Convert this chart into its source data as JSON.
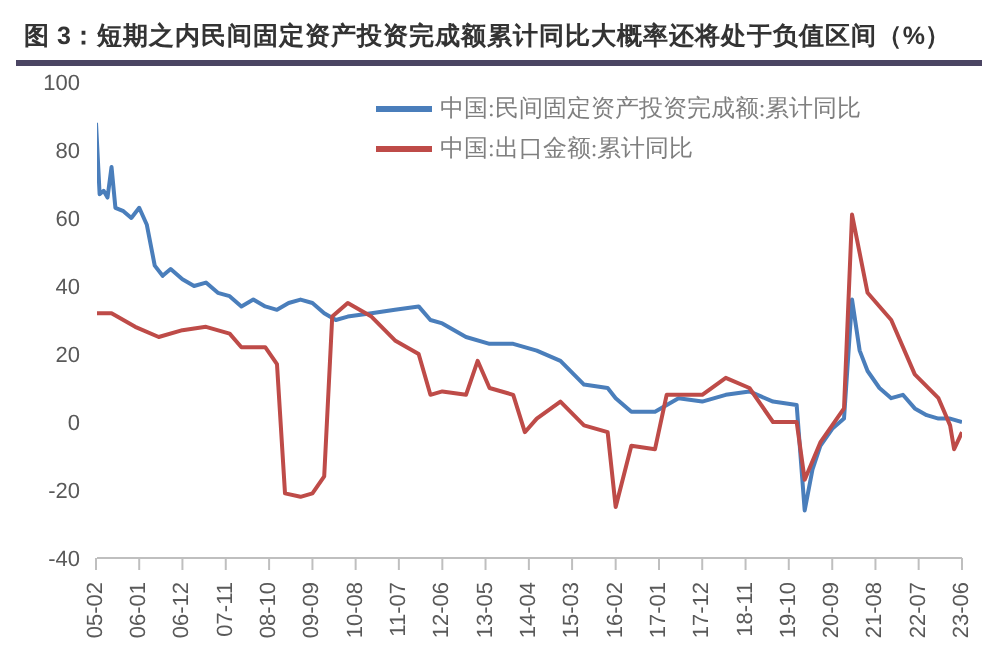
{
  "chart_data": {
    "type": "line",
    "title": "图 3：短期之内民间固定资产投资完成额累计同比大概率还将处于负值区间（%）",
    "legend": "top right",
    "marker": "none",
    "line_style": "solid",
    "ylim": [
      -40,
      100
    ],
    "yticks": [
      -40,
      -20,
      0,
      20,
      40,
      60,
      80,
      100
    ],
    "xlim": [
      "2005-02",
      "2023-06"
    ],
    "xticks": [
      {
        "value": "2005-02",
        "label": "05-02"
      },
      {
        "value": "2006-01",
        "label": "06-01"
      },
      {
        "value": "2006-12",
        "label": "06-12"
      },
      {
        "value": "2007-11",
        "label": "07-11"
      },
      {
        "value": "2008-10",
        "label": "08-10"
      },
      {
        "value": "2009-09",
        "label": "09-09"
      },
      {
        "value": "2010-08",
        "label": "10-08"
      },
      {
        "value": "2011-07",
        "label": "11-07"
      },
      {
        "value": "2012-06",
        "label": "12-06"
      },
      {
        "value": "2013-05",
        "label": "13-05"
      },
      {
        "value": "2014-04",
        "label": "14-04"
      },
      {
        "value": "2015-03",
        "label": "15-03"
      },
      {
        "value": "2016-02",
        "label": "16-02"
      },
      {
        "value": "2017-01",
        "label": "17-01"
      },
      {
        "value": "2017-12",
        "label": "17-12"
      },
      {
        "value": "2018-11",
        "label": "18-11"
      },
      {
        "value": "2019-10",
        "label": "19-10"
      },
      {
        "value": "2020-09",
        "label": "20-09"
      },
      {
        "value": "2021-08",
        "label": "21-08"
      },
      {
        "value": "2022-07",
        "label": "22-07"
      },
      {
        "value": "2023-06",
        "label": "23-06"
      }
    ],
    "series": [
      {
        "name": "中国:民间固定资产投资完成额:累计同比",
        "color": "#4a7ebb",
        "x": [
          "2005-02",
          "2005-03",
          "2005-04",
          "2005-05",
          "2005-06",
          "2005-07",
          "2005-09",
          "2005-11",
          "2006-01",
          "2006-03",
          "2006-05",
          "2006-07",
          "2006-09",
          "2006-12",
          "2007-03",
          "2007-06",
          "2007-09",
          "2007-12",
          "2008-03",
          "2008-06",
          "2008-09",
          "2008-12",
          "2009-03",
          "2009-06",
          "2009-09",
          "2009-12",
          "2010-03",
          "2010-06",
          "2010-12",
          "2011-06",
          "2011-12",
          "2012-03",
          "2012-06",
          "2012-12",
          "2013-06",
          "2013-12",
          "2014-06",
          "2014-12",
          "2015-06",
          "2015-12",
          "2016-02",
          "2016-06",
          "2016-12",
          "2017-06",
          "2017-12",
          "2018-06",
          "2018-12",
          "2019-06",
          "2019-12",
          "2020-02",
          "2020-04",
          "2020-06",
          "2020-09",
          "2020-12",
          "2021-02",
          "2021-04",
          "2021-06",
          "2021-09",
          "2021-12",
          "2022-03",
          "2022-06",
          "2022-09",
          "2022-12",
          "2023-03",
          "2023-06"
        ],
        "values": [
          88,
          67,
          68,
          66,
          75,
          63,
          62,
          60,
          63,
          58,
          46,
          43,
          45,
          42,
          40,
          41,
          38,
          37,
          34,
          36,
          34,
          33,
          35,
          36,
          35,
          32,
          30,
          31,
          32,
          33,
          34,
          30,
          29,
          25,
          23,
          23,
          21,
          18,
          11,
          10,
          7,
          3,
          3,
          7,
          6,
          8,
          9,
          6,
          5,
          -26,
          -14,
          -7,
          -2,
          1,
          36,
          21,
          15,
          10,
          7,
          8,
          4,
          2,
          1,
          1,
          0
        ]
      },
      {
        "name": "中国:出口金额:累计同比",
        "color": "#be4b48",
        "x": [
          "2005-02",
          "2005-06",
          "2005-12",
          "2006-06",
          "2006-12",
          "2007-06",
          "2007-12",
          "2008-03",
          "2008-06",
          "2008-09",
          "2008-12",
          "2009-02",
          "2009-06",
          "2009-09",
          "2009-12",
          "2010-02",
          "2010-06",
          "2010-12",
          "2011-06",
          "2011-12",
          "2012-03",
          "2012-06",
          "2012-12",
          "2013-03",
          "2013-06",
          "2013-12",
          "2014-03",
          "2014-06",
          "2014-12",
          "2015-06",
          "2015-12",
          "2016-02",
          "2016-06",
          "2016-12",
          "2017-03",
          "2017-12",
          "2018-06",
          "2018-12",
          "2019-06",
          "2019-12",
          "2020-02",
          "2020-06",
          "2020-12",
          "2021-02",
          "2021-06",
          "2021-12",
          "2022-06",
          "2022-12",
          "2023-03",
          "2023-04",
          "2023-06"
        ],
        "values": [
          32,
          32,
          28,
          25,
          27,
          28,
          26,
          22,
          22,
          22,
          17,
          -21,
          -22,
          -21,
          -16,
          31,
          35,
          31,
          24,
          20,
          8,
          9,
          8,
          18,
          10,
          8,
          -3,
          1,
          6,
          -1,
          -3,
          -25,
          -7,
          -8,
          8,
          8,
          13,
          10,
          0,
          0,
          -17,
          -6,
          4,
          61,
          38,
          30,
          14,
          7,
          -1,
          -8,
          -3
        ]
      }
    ]
  }
}
